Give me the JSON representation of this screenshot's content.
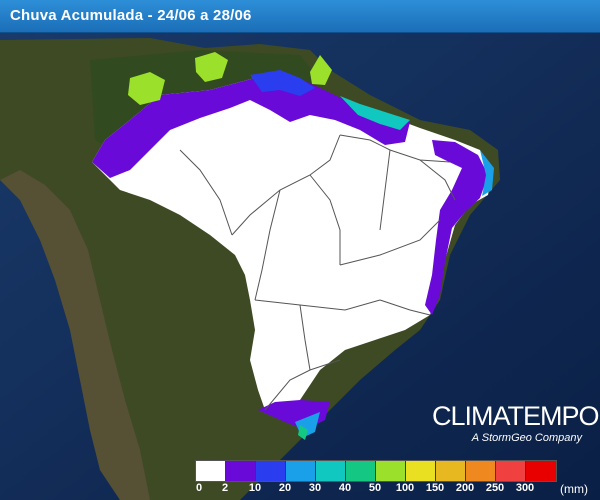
{
  "header": {
    "title": "Chuva Acumulada - 24/06 a 28/06"
  },
  "brand": {
    "name": "CLIMATEMPO",
    "tagline": "A StormGeo Company"
  },
  "legend": {
    "unit": "(mm)",
    "colors": [
      "#ffffff",
      "#6a0ad8",
      "#2a3ef0",
      "#1aa0e8",
      "#10c8c0",
      "#14c884",
      "#9be02a",
      "#e8e020",
      "#e8b820",
      "#f08820",
      "#f04040",
      "#e80000"
    ],
    "labels": [
      "0",
      "2",
      "10",
      "20",
      "30",
      "40",
      "50",
      "100",
      "150",
      "200",
      "250",
      "300"
    ]
  }
}
